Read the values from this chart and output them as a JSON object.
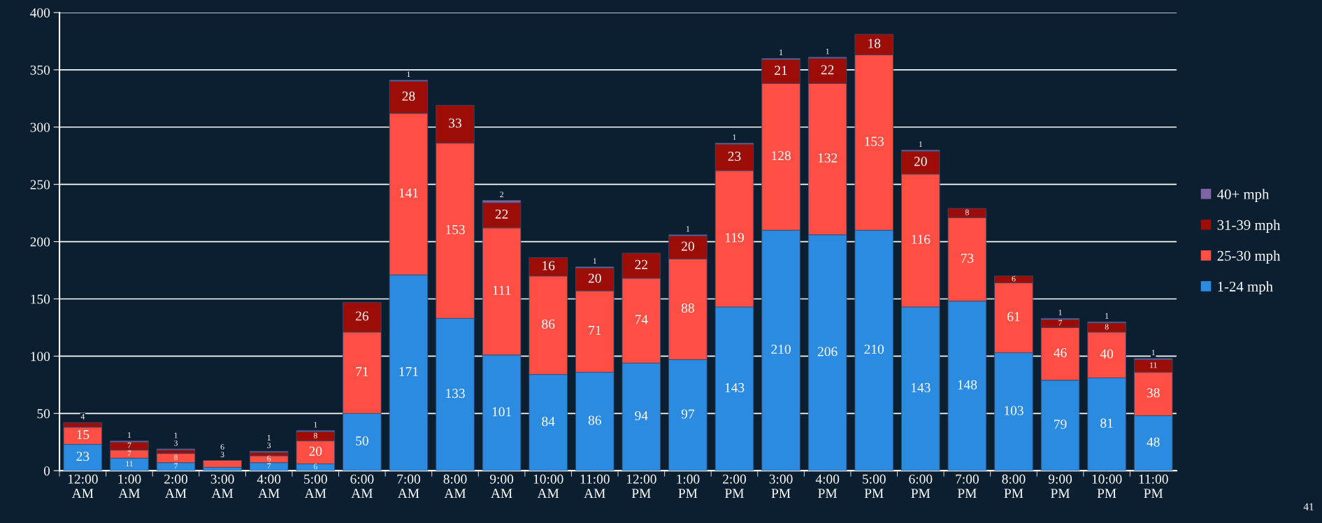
{
  "chart_data": {
    "type": "bar",
    "stacked": true,
    "categories": [
      "12:00\nAM",
      "1:00\nAM",
      "2:00\nAM",
      "3:00\nAM",
      "4:00\nAM",
      "5:00\nAM",
      "6:00\nAM",
      "7:00\nAM",
      "8:00\nAM",
      "9:00\nAM",
      "10:00\nAM",
      "11:00\nAM",
      "12:00\nPM",
      "1:00\nPM",
      "2:00\nPM",
      "3:00\nPM",
      "4:00\nPM",
      "5:00\nPM",
      "6:00\nPM",
      "7:00\nPM",
      "8:00\nPM",
      "9:00\nPM",
      "10:00\nPM",
      "11:00\nPM"
    ],
    "series": [
      {
        "name": "1-24 mph",
        "color": "#2b8be0",
        "values": [
          23,
          11,
          7,
          3,
          7,
          6,
          50,
          171,
          133,
          101,
          84,
          86,
          94,
          97,
          143,
          210,
          206,
          210,
          143,
          148,
          103,
          79,
          81,
          48
        ]
      },
      {
        "name": "25-30 mph",
        "color": "#ff4f44",
        "values": [
          15,
          7,
          8,
          6,
          6,
          20,
          71,
          141,
          153,
          111,
          86,
          71,
          74,
          88,
          119,
          128,
          132,
          153,
          116,
          73,
          61,
          46,
          40,
          38
        ]
      },
      {
        "name": "31-39 mph",
        "color": "#9b0d06",
        "values": [
          4,
          7,
          3,
          null,
          3,
          8,
          26,
          28,
          33,
          22,
          16,
          20,
          22,
          20,
          23,
          21,
          22,
          18,
          20,
          8,
          6,
          7,
          8,
          11
        ]
      },
      {
        "name": "40+ mph",
        "color": "#8064a2",
        "values": [
          null,
          1,
          1,
          null,
          1,
          1,
          null,
          1,
          null,
          2,
          null,
          1,
          null,
          1,
          1,
          1,
          1,
          null,
          1,
          null,
          null,
          1,
          1,
          1
        ]
      }
    ],
    "ylim": [
      0,
      400
    ],
    "yticks": [
      0,
      50,
      100,
      150,
      200,
      250,
      300,
      350,
      400
    ],
    "grid": "y",
    "legend": "right",
    "data_labels": true,
    "annotations": [
      "41"
    ]
  }
}
